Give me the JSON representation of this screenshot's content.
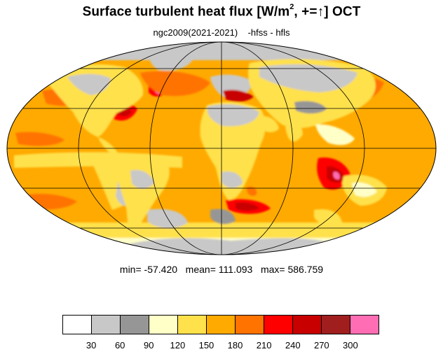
{
  "title": {
    "prefix": "Surface turbulent heat flux [W/m",
    "exponent": "2",
    "middle": ", +=",
    "arrow": "↑",
    "suffix": "]  OCT"
  },
  "subtitle": "ngc2009(2021-2021)    -hfss - hfls",
  "stats": "min= -57.420   mean= 111.093   max= 586.759",
  "legend": {
    "colors": [
      "#ffffff",
      "#c8c8c8",
      "#969696",
      "#ffffc8",
      "#ffe14b",
      "#ffaa00",
      "#ff7300",
      "#ff0000",
      "#c80000",
      "#a01e1e",
      "#ff6eb4"
    ],
    "labels": [
      "30",
      "60",
      "90",
      "120",
      "150",
      "180",
      "210",
      "240",
      "270",
      "300"
    ]
  },
  "map": {
    "projection": "mollweide",
    "ocean_color": "#ffaa00",
    "land_color": "#ffe14b",
    "grid_color": "#000000"
  }
}
